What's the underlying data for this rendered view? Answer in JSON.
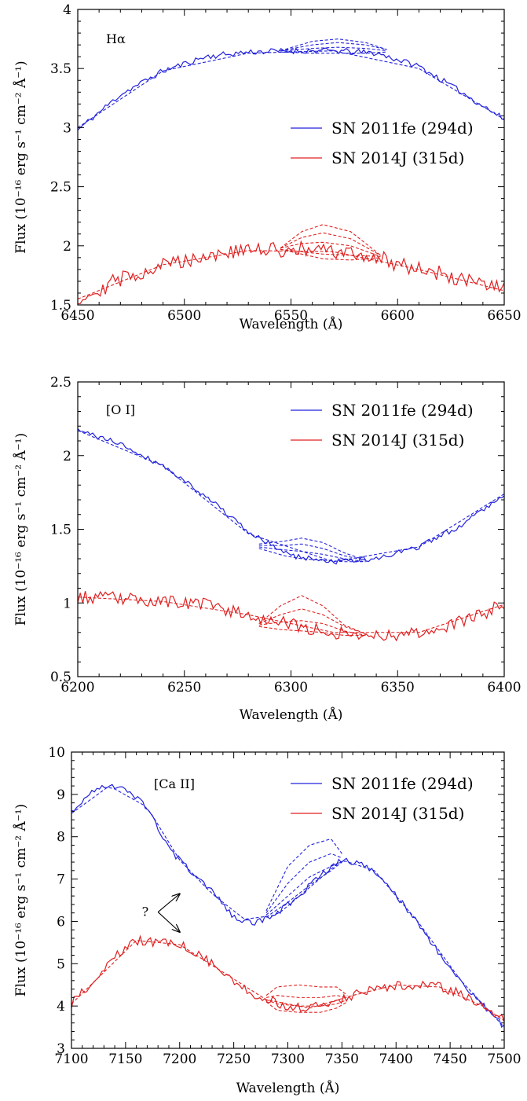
{
  "colors": {
    "sn2011fe": "#2222dd",
    "sn2014j": "#e02020",
    "axis": "#000000"
  },
  "chart_data": [
    {
      "type": "line",
      "panel_label": "Hα",
      "xlabel": "Wavelength (Å)",
      "ylabel": "Flux (10⁻¹⁶ erg s⁻¹ cm⁻² Å⁻¹)",
      "xlim": [
        6450,
        6650
      ],
      "ylim": [
        1.5,
        4.0
      ],
      "xticks": [
        6450,
        6500,
        6550,
        6600,
        6650
      ],
      "yticks": [
        1.5,
        2,
        2.5,
        3,
        3.5,
        4
      ],
      "ytick_labels": [
        "1.5",
        "2",
        "2.5",
        "3",
        "3.5",
        "4"
      ],
      "legend_position": "middle-right",
      "series": [
        {
          "name": "SN 2011fe (294d)",
          "color": "#2222dd",
          "x": [
            6450,
            6470,
            6490,
            6510,
            6530,
            6550,
            6570,
            6590,
            6610,
            6630,
            6650
          ],
          "y": [
            2.98,
            3.28,
            3.48,
            3.6,
            3.64,
            3.65,
            3.65,
            3.63,
            3.52,
            3.3,
            3.07
          ],
          "noise": 0.025,
          "seed": 11
        },
        {
          "name": "SN 2014J (315d)",
          "color": "#e02020",
          "x": [
            6450,
            6470,
            6490,
            6510,
            6530,
            6550,
            6570,
            6590,
            6610,
            6630,
            6650
          ],
          "y": [
            1.55,
            1.72,
            1.84,
            1.92,
            1.96,
            1.97,
            1.95,
            1.9,
            1.81,
            1.71,
            1.62
          ],
          "noise": 0.07,
          "seed": 29
        }
      ],
      "models": [
        {
          "color": "#2222dd",
          "x": [
            6450,
            6490,
            6530,
            6570,
            6610,
            6650
          ],
          "y": [
            3.0,
            3.48,
            3.63,
            3.65,
            3.5,
            3.07
          ]
        },
        {
          "color": "#2222dd",
          "x": [
            6545,
            6560,
            6572,
            6585,
            6595
          ],
          "y": [
            3.65,
            3.73,
            3.75,
            3.72,
            3.66
          ]
        },
        {
          "color": "#2222dd",
          "x": [
            6545,
            6560,
            6572,
            6585,
            6595
          ],
          "y": [
            3.65,
            3.7,
            3.72,
            3.7,
            3.66
          ]
        },
        {
          "color": "#2222dd",
          "x": [
            6545,
            6560,
            6572,
            6585,
            6595
          ],
          "y": [
            3.65,
            3.67,
            3.68,
            3.67,
            3.65
          ]
        },
        {
          "color": "#2222dd",
          "x": [
            6545,
            6560,
            6572,
            6585,
            6595
          ],
          "y": [
            3.64,
            3.63,
            3.63,
            3.63,
            3.64
          ]
        },
        {
          "color": "#e02020",
          "x": [
            6450,
            6490,
            6530,
            6570,
            6610,
            6650
          ],
          "y": [
            1.55,
            1.84,
            1.96,
            1.95,
            1.8,
            1.62
          ]
        },
        {
          "color": "#e02020",
          "x": [
            6545,
            6555,
            6565,
            6578,
            6592
          ],
          "y": [
            1.98,
            2.12,
            2.18,
            2.12,
            1.92
          ]
        },
        {
          "color": "#e02020",
          "x": [
            6545,
            6555,
            6565,
            6578,
            6592
          ],
          "y": [
            1.98,
            2.07,
            2.11,
            2.06,
            1.92
          ]
        },
        {
          "color": "#e02020",
          "x": [
            6545,
            6555,
            6565,
            6578,
            6592
          ],
          "y": [
            1.98,
            2.02,
            2.03,
            2.0,
            1.91
          ]
        },
        {
          "color": "#e02020",
          "x": [
            6545,
            6555,
            6565,
            6578,
            6592
          ],
          "y": [
            1.97,
            1.95,
            1.93,
            1.92,
            1.91
          ]
        },
        {
          "color": "#e02020",
          "x": [
            6545,
            6555,
            6565,
            6578,
            6592
          ],
          "y": [
            1.97,
            1.93,
            1.89,
            1.88,
            1.9
          ]
        }
      ]
    },
    {
      "type": "line",
      "panel_label": "[O I]",
      "xlabel": "Wavelength (Å)",
      "ylabel": "Flux (10⁻¹⁶ erg s⁻¹ cm⁻² Å⁻¹)",
      "xlim": [
        6200,
        6400
      ],
      "ylim": [
        0.5,
        2.5
      ],
      "xticks": [
        6200,
        6250,
        6300,
        6350,
        6400
      ],
      "yticks": [
        0.5,
        1,
        1.5,
        2,
        2.5
      ],
      "ytick_labels": [
        "0.5",
        "1",
        "1.5",
        "2",
        "2.5"
      ],
      "legend_position": "top-right",
      "series": [
        {
          "name": "SN 2011fe (294d)",
          "color": "#2222dd",
          "x": [
            6200,
            6220,
            6240,
            6260,
            6280,
            6300,
            6320,
            6340,
            6360,
            6380,
            6400
          ],
          "y": [
            2.17,
            2.08,
            1.93,
            1.73,
            1.48,
            1.32,
            1.28,
            1.3,
            1.38,
            1.53,
            1.74
          ],
          "noise": 0.018,
          "seed": 41
        },
        {
          "name": "SN 2014J (315d)",
          "color": "#e02020",
          "x": [
            6200,
            6220,
            6240,
            6260,
            6280,
            6300,
            6320,
            6340,
            6360,
            6380,
            6400
          ],
          "y": [
            1.04,
            1.03,
            1.01,
            0.99,
            0.92,
            0.85,
            0.8,
            0.78,
            0.8,
            0.87,
            0.99
          ],
          "noise": 0.045,
          "seed": 53
        }
      ],
      "models": [
        {
          "color": "#2222dd",
          "x": [
            6200,
            6240,
            6280,
            6320,
            6360,
            6400
          ],
          "y": [
            2.17,
            1.93,
            1.47,
            1.28,
            1.38,
            1.74
          ]
        },
        {
          "color": "#2222dd",
          "x": [
            6285,
            6297,
            6305,
            6315,
            6325,
            6335
          ],
          "y": [
            1.4,
            1.42,
            1.44,
            1.41,
            1.34,
            1.29
          ]
        },
        {
          "color": "#2222dd",
          "x": [
            6285,
            6297,
            6305,
            6315,
            6325,
            6335
          ],
          "y": [
            1.39,
            1.39,
            1.4,
            1.37,
            1.32,
            1.29
          ]
        },
        {
          "color": "#2222dd",
          "x": [
            6285,
            6297,
            6305,
            6315,
            6325,
            6335
          ],
          "y": [
            1.38,
            1.36,
            1.35,
            1.33,
            1.3,
            1.28
          ]
        },
        {
          "color": "#2222dd",
          "x": [
            6285,
            6297,
            6305,
            6315,
            6325,
            6335
          ],
          "y": [
            1.37,
            1.32,
            1.3,
            1.29,
            1.28,
            1.28
          ]
        },
        {
          "color": "#e02020",
          "x": [
            6200,
            6240,
            6280,
            6320,
            6360,
            6400
          ],
          "y": [
            1.04,
            1.01,
            0.92,
            0.8,
            0.8,
            0.99
          ]
        },
        {
          "color": "#e02020",
          "x": [
            6285,
            6295,
            6305,
            6315,
            6325,
            6335
          ],
          "y": [
            0.86,
            0.98,
            1.05,
            0.98,
            0.85,
            0.79
          ]
        },
        {
          "color": "#e02020",
          "x": [
            6285,
            6295,
            6305,
            6315,
            6325,
            6335
          ],
          "y": [
            0.86,
            0.92,
            0.96,
            0.92,
            0.84,
            0.79
          ]
        },
        {
          "color": "#e02020",
          "x": [
            6285,
            6295,
            6305,
            6315,
            6325,
            6335
          ],
          "y": [
            0.85,
            0.87,
            0.88,
            0.86,
            0.81,
            0.78
          ]
        },
        {
          "color": "#e02020",
          "x": [
            6285,
            6295,
            6305,
            6315,
            6325,
            6335
          ],
          "y": [
            0.84,
            0.82,
            0.81,
            0.8,
            0.78,
            0.78
          ]
        }
      ]
    },
    {
      "type": "line",
      "panel_label": "[Ca II]",
      "xlabel": "Wavelength (Å)",
      "ylabel": "Flux (10⁻¹⁶ erg s⁻¹ cm⁻² Å⁻¹)",
      "xlim": [
        7100,
        7500
      ],
      "ylim": [
        3,
        10
      ],
      "xticks": [
        7100,
        7150,
        7200,
        7250,
        7300,
        7350,
        7400,
        7450,
        7500
      ],
      "yticks": [
        3,
        4,
        5,
        6,
        7,
        8,
        9,
        10
      ],
      "ytick_labels": [
        "3",
        "4",
        "5",
        "6",
        "7",
        "8",
        "9",
        "10"
      ],
      "legend_position": "top-right",
      "annotation": {
        "text": "?",
        "arrow_targets": [
          [
            7200,
            6.65
          ],
          [
            7200,
            5.75
          ]
        ],
        "origin": [
          7180,
          6.22
        ]
      },
      "series": [
        {
          "name": "SN 2011fe (294d)",
          "color": "#2222dd",
          "x": [
            7100,
            7120,
            7135,
            7150,
            7170,
            7190,
            7210,
            7230,
            7250,
            7270,
            7290,
            7310,
            7330,
            7350,
            7370,
            7390,
            7410,
            7430,
            7450,
            7470,
            7500
          ],
          "y": [
            8.55,
            9.1,
            9.22,
            9.15,
            8.7,
            7.7,
            7.2,
            6.7,
            6.1,
            5.95,
            6.2,
            6.6,
            7.1,
            7.45,
            7.35,
            6.95,
            6.3,
            5.6,
            4.9,
            4.3,
            3.5
          ],
          "noise": 0.07,
          "seed": 67
        },
        {
          "name": "SN 2014J (315d)",
          "color": "#e02020",
          "x": [
            7100,
            7120,
            7140,
            7160,
            7180,
            7200,
            7220,
            7240,
            7260,
            7280,
            7300,
            7320,
            7340,
            7360,
            7380,
            7400,
            7420,
            7440,
            7460,
            7480,
            7500
          ],
          "y": [
            4.05,
            4.6,
            5.15,
            5.55,
            5.5,
            5.45,
            5.2,
            4.8,
            4.4,
            4.15,
            4.0,
            3.95,
            4.05,
            4.25,
            4.4,
            4.5,
            4.5,
            4.45,
            4.3,
            4.0,
            3.65
          ],
          "noise": 0.11,
          "seed": 79
        }
      ],
      "models": [
        {
          "color": "#2222dd",
          "x": [
            7100,
            7135,
            7170,
            7200,
            7230,
            7260,
            7290,
            7320,
            7350,
            7380,
            7420,
            7460,
            7500
          ],
          "y": [
            8.55,
            9.2,
            8.7,
            7.45,
            6.65,
            6.05,
            6.15,
            6.8,
            7.45,
            7.2,
            6.0,
            4.6,
            3.5
          ]
        },
        {
          "color": "#2222dd",
          "x": [
            7280,
            7300,
            7320,
            7340,
            7350
          ],
          "y": [
            6.25,
            7.3,
            7.8,
            7.95,
            7.6
          ]
        },
        {
          "color": "#2222dd",
          "x": [
            7280,
            7300,
            7320,
            7340,
            7350
          ],
          "y": [
            6.2,
            6.9,
            7.4,
            7.6,
            7.5
          ]
        },
        {
          "color": "#2222dd",
          "x": [
            7280,
            7300,
            7320,
            7340,
            7350
          ],
          "y": [
            6.15,
            6.6,
            7.05,
            7.3,
            7.42
          ]
        },
        {
          "color": "#2222dd",
          "x": [
            7280,
            7300,
            7320,
            7340,
            7350
          ],
          "y": [
            6.1,
            6.45,
            6.85,
            7.2,
            7.4
          ]
        },
        {
          "color": "#e02020",
          "x": [
            7100,
            7160,
            7200,
            7240,
            7280,
            7320,
            7360,
            7400,
            7440,
            7480,
            7500
          ],
          "y": [
            4.05,
            5.55,
            5.45,
            4.8,
            4.15,
            3.95,
            4.25,
            4.5,
            4.45,
            4.0,
            3.65
          ]
        },
        {
          "color": "#e02020",
          "x": [
            7280,
            7290,
            7310,
            7330,
            7345,
            7355
          ],
          "y": [
            4.25,
            4.45,
            4.5,
            4.45,
            4.45,
            4.25
          ]
        },
        {
          "color": "#e02020",
          "x": [
            7280,
            7290,
            7310,
            7330,
            7345,
            7355
          ],
          "y": [
            4.2,
            4.25,
            4.2,
            4.2,
            4.25,
            4.2
          ]
        },
        {
          "color": "#e02020",
          "x": [
            7280,
            7290,
            7310,
            7330,
            7345,
            7355
          ],
          "y": [
            4.15,
            4.05,
            4.0,
            4.0,
            4.05,
            4.15
          ]
        },
        {
          "color": "#e02020",
          "x": [
            7280,
            7290,
            7310,
            7330,
            7345,
            7355
          ],
          "y": [
            4.1,
            3.9,
            3.85,
            3.85,
            3.95,
            4.1
          ]
        }
      ]
    }
  ]
}
